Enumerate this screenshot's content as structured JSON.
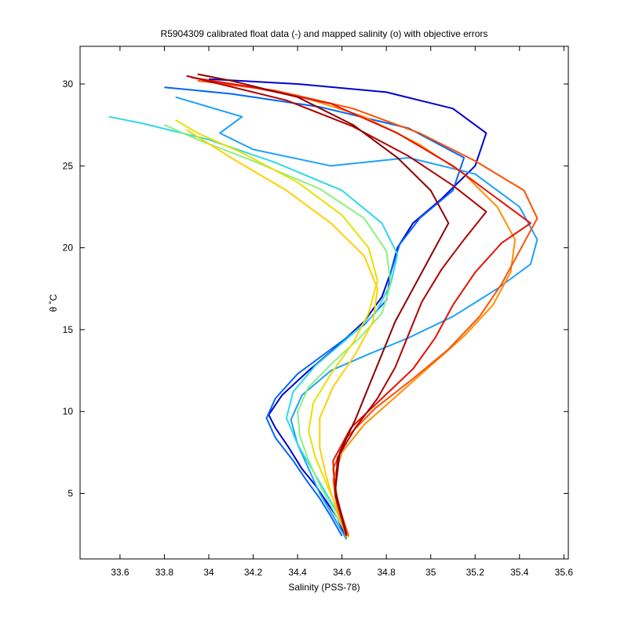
{
  "chart_data": {
    "type": "line",
    "title": "R5904309 calibrated float data (-) and mapped salinity (o) with objective errors",
    "xlabel": "Salinity (PSS-78)",
    "ylabel": "θ ˚C",
    "xlim": [
      33.42,
      35.62
    ],
    "ylim": [
      1,
      32.3
    ],
    "xticks": [
      33.6,
      33.8,
      34,
      34.2,
      34.4,
      34.6,
      34.8,
      35,
      35.2,
      35.4,
      35.6
    ],
    "xtick_labels": [
      "33.6",
      "33.8",
      "34",
      "34.2",
      "34.4",
      "34.6",
      "34.8",
      "35",
      "35.2",
      "35.4",
      "35.6"
    ],
    "yticks": [
      5,
      10,
      15,
      20,
      25,
      30
    ],
    "ytick_labels": [
      "5",
      "10",
      "15",
      "20",
      "25",
      "30"
    ],
    "grid": false,
    "legend": "none",
    "colormap": "jet",
    "series_note_colors": [
      "#00008f",
      "#0000ff",
      "#0080ff",
      "#00ffff",
      "#80ff80",
      "#ffff00",
      "#ff8000",
      "#ff0000",
      "#800000"
    ],
    "series": [
      {
        "color": "#0000cc",
        "x": [
          34.62,
          34.58,
          34.53,
          34.48,
          34.42,
          34.36,
          34.3,
          34.27,
          34.33,
          34.45,
          34.58,
          34.7,
          34.78,
          34.82,
          34.85,
          34.92,
          35.05,
          35.2,
          35.25,
          35.1,
          34.8,
          34.4,
          34.0
        ],
        "y": [
          2.2,
          3.5,
          4.5,
          5.5,
          6.5,
          7.8,
          9.0,
          9.8,
          11.0,
          12.5,
          14.0,
          15.5,
          17.0,
          18.5,
          20.0,
          21.5,
          23.0,
          25.0,
          27.0,
          28.5,
          29.5,
          30.0,
          30.3
        ]
      },
      {
        "color": "#0066ff",
        "x": [
          34.6,
          34.55,
          34.5,
          34.44,
          34.38,
          34.3,
          34.26,
          34.3,
          34.4,
          34.55,
          34.7,
          34.8,
          34.82,
          34.86,
          34.95,
          35.1,
          35.15,
          34.9,
          34.5,
          34.1,
          33.8
        ],
        "y": [
          2.4,
          3.6,
          4.7,
          5.8,
          7.0,
          8.4,
          9.6,
          10.8,
          12.3,
          13.8,
          15.3,
          16.8,
          18.5,
          20.2,
          21.8,
          23.5,
          25.5,
          27.3,
          28.6,
          29.4,
          29.8
        ]
      },
      {
        "color": "#1ea0ff",
        "x": [
          34.62,
          34.57,
          34.5,
          34.45,
          34.4,
          34.37,
          34.42,
          34.55,
          34.72,
          34.9,
          35.1,
          35.3,
          35.45,
          35.48,
          35.4,
          35.2,
          34.9,
          34.55,
          34.2,
          34.05,
          34.15,
          33.85
        ],
        "y": [
          2.2,
          3.4,
          5.0,
          6.5,
          8.0,
          9.5,
          11.0,
          12.5,
          13.5,
          14.5,
          15.8,
          17.5,
          19.0,
          20.5,
          22.5,
          24.5,
          25.5,
          25.0,
          26.0,
          27.0,
          28.0,
          29.2
        ]
      },
      {
        "color": "#30d8e8",
        "x": [
          34.63,
          34.58,
          34.52,
          34.46,
          34.4,
          34.35,
          34.38,
          34.48,
          34.62,
          34.75,
          34.82,
          34.85,
          34.78,
          34.6,
          34.3,
          34.0,
          33.7,
          33.55
        ],
        "y": [
          2.3,
          3.8,
          5.2,
          6.6,
          8.0,
          9.6,
          11.2,
          12.8,
          14.4,
          16.0,
          17.8,
          19.6,
          21.5,
          23.5,
          25.2,
          26.6,
          27.6,
          28.0
        ]
      },
      {
        "color": "#8cf080",
        "x": [
          34.62,
          34.56,
          34.5,
          34.45,
          34.41,
          34.4,
          34.45,
          34.56,
          34.68,
          34.78,
          34.82,
          34.8,
          34.7,
          34.5,
          34.2,
          33.95,
          33.8
        ],
        "y": [
          2.5,
          4.0,
          5.5,
          7.0,
          8.5,
          10.0,
          11.5,
          13.0,
          14.5,
          16.0,
          17.8,
          19.8,
          21.8,
          23.6,
          25.3,
          26.6,
          27.5
        ]
      },
      {
        "color": "#e8e000",
        "x": [
          34.63,
          34.58,
          34.53,
          34.48,
          34.45,
          34.47,
          34.55,
          34.65,
          34.72,
          34.76,
          34.72,
          34.6,
          34.4,
          34.15,
          33.95,
          33.85
        ],
        "y": [
          2.3,
          4.0,
          5.6,
          7.2,
          8.8,
          10.5,
          12.3,
          14.2,
          16.0,
          18.0,
          20.0,
          22.0,
          24.0,
          25.8,
          27.0,
          27.8
        ]
      },
      {
        "color": "#ffd000",
        "x": [
          34.62,
          34.57,
          34.53,
          34.5,
          34.5,
          34.56,
          34.66,
          34.74,
          34.76,
          34.7,
          34.55,
          34.35,
          34.1,
          33.9
        ],
        "y": [
          2.4,
          4.2,
          6.0,
          7.8,
          9.6,
          11.5,
          13.5,
          15.5,
          17.5,
          19.5,
          21.5,
          23.5,
          25.5,
          27.2
        ]
      },
      {
        "color": "#ff9000",
        "x": [
          34.62,
          34.58,
          34.56,
          34.6,
          34.7,
          34.85,
          35.0,
          35.15,
          35.28,
          35.36,
          35.38,
          35.3,
          35.15,
          34.95,
          34.7,
          34.4,
          34.1
        ],
        "y": [
          2.3,
          4.0,
          5.8,
          7.5,
          9.2,
          11.0,
          12.8,
          14.6,
          16.5,
          18.5,
          20.5,
          22.5,
          24.5,
          26.3,
          28.0,
          29.3,
          30.0
        ]
      },
      {
        "color": "#ff5000",
        "x": [
          34.63,
          34.58,
          34.56,
          34.62,
          34.75,
          34.92,
          35.08,
          35.22,
          35.32,
          35.4,
          35.48,
          35.42,
          35.2,
          34.95,
          34.65,
          34.3,
          33.95
        ],
        "y": [
          2.4,
          4.5,
          6.5,
          8.4,
          10.2,
          12.0,
          13.8,
          15.8,
          17.8,
          19.8,
          21.8,
          23.5,
          25.3,
          27.0,
          28.5,
          29.6,
          30.2
        ]
      },
      {
        "color": "#e81000",
        "x": [
          34.62,
          34.57,
          34.56,
          34.64,
          34.78,
          34.92,
          35.02,
          35.1,
          35.2,
          35.32,
          35.45,
          35.3,
          35.1,
          34.85,
          34.55,
          34.2,
          33.92
        ],
        "y": [
          2.5,
          4.8,
          7.0,
          9.0,
          10.8,
          12.6,
          14.5,
          16.5,
          18.5,
          20.3,
          21.5,
          23.0,
          25.0,
          27.0,
          28.8,
          29.8,
          30.4
        ]
      },
      {
        "color": "#b00000",
        "x": [
          34.62,
          34.57,
          34.58,
          34.66,
          34.76,
          34.84,
          34.9,
          34.96,
          35.05,
          35.15,
          35.25,
          35.1,
          34.9,
          34.65,
          34.35,
          34.05,
          33.9
        ],
        "y": [
          2.4,
          5.0,
          7.2,
          9.0,
          10.8,
          12.7,
          14.7,
          16.7,
          18.7,
          20.5,
          22.2,
          23.8,
          25.6,
          27.4,
          29.0,
          30.0,
          30.5
        ]
      },
      {
        "color": "#8a0000",
        "x": [
          34.62,
          34.57,
          34.59,
          34.66,
          34.72,
          34.78,
          34.84,
          34.92,
          35.0,
          35.08,
          35.0,
          34.85,
          34.65,
          34.4,
          34.1,
          33.95
        ],
        "y": [
          2.5,
          5.2,
          7.5,
          9.5,
          11.5,
          13.5,
          15.5,
          17.5,
          19.5,
          21.5,
          23.5,
          25.5,
          27.5,
          29.2,
          30.2,
          30.6
        ]
      }
    ]
  }
}
